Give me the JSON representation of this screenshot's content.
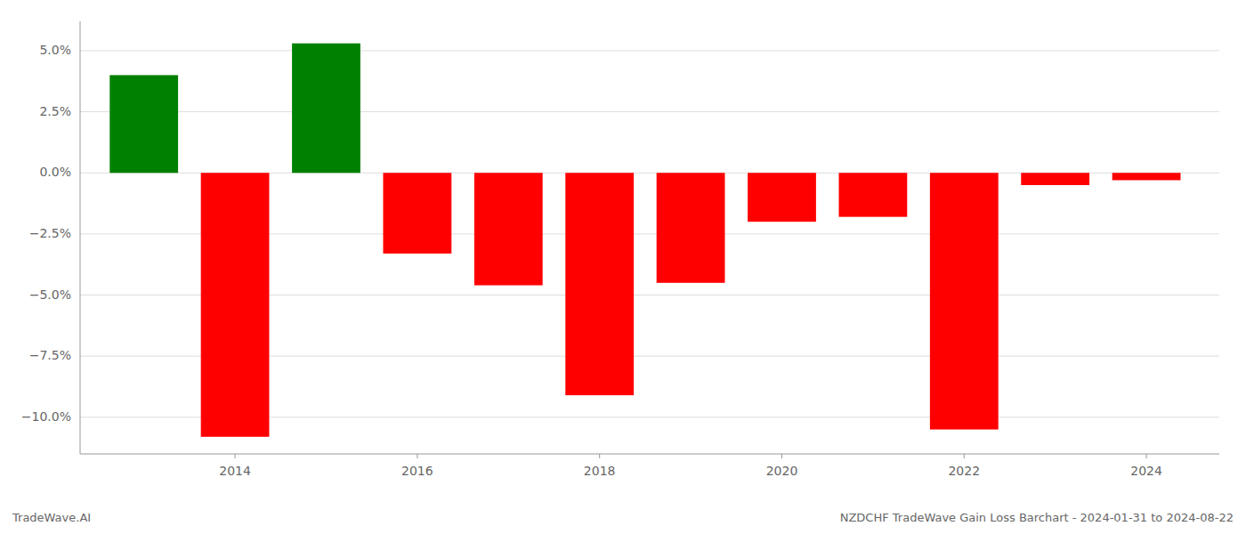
{
  "chart_data": {
    "type": "bar",
    "x": [
      2013,
      2014,
      2015,
      2016,
      2017,
      2018,
      2019,
      2020,
      2021,
      2022,
      2023,
      2024
    ],
    "values": [
      4.0,
      -10.8,
      5.3,
      -3.3,
      -4.6,
      -9.1,
      -4.5,
      -2.0,
      -1.8,
      -10.5,
      -0.5,
      -0.3
    ],
    "colors": [
      "#008000",
      "#ff0000",
      "#008000",
      "#ff0000",
      "#ff0000",
      "#ff0000",
      "#ff0000",
      "#ff0000",
      "#ff0000",
      "#ff0000",
      "#ff0000",
      "#ff0000"
    ],
    "xlim": [
      2012.3,
      2024.8
    ],
    "xticks": [
      2014,
      2016,
      2018,
      2020,
      2022,
      2024
    ],
    "ylim": [
      -11.5,
      6.2
    ],
    "yticks": [
      {
        "value": -10.0,
        "label": "−10.0%"
      },
      {
        "value": -7.5,
        "label": "−7.5%"
      },
      {
        "value": -5.0,
        "label": "−5.0%"
      },
      {
        "value": -2.5,
        "label": "−2.5%"
      },
      {
        "value": 0.0,
        "label": "0.0%"
      },
      {
        "value": 2.5,
        "label": "2.5%"
      },
      {
        "value": 5.0,
        "label": "5.0%"
      }
    ],
    "grid": true,
    "annotations": [
      "TradeWave.AI",
      "NZDCHF TradeWave Gain Loss Barchart - 2024-01-31 to 2024-08-22"
    ]
  }
}
